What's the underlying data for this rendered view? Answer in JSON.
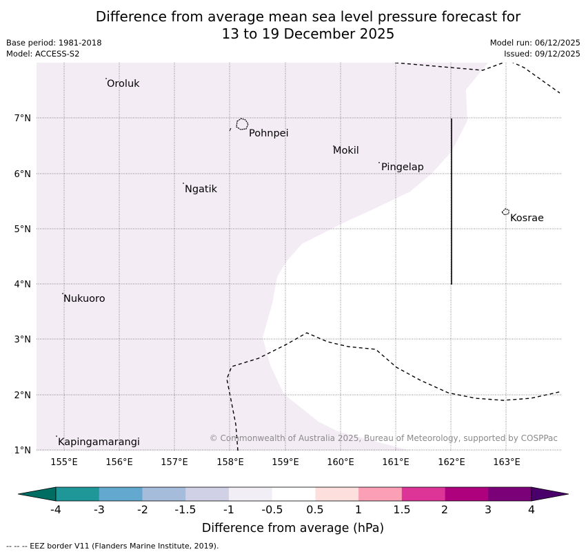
{
  "title": {
    "line1": "Difference from average mean sea level pressure forecast for",
    "line2": "13 to 19 December 2025"
  },
  "meta": {
    "base_period": "Base period: 1981-2018",
    "model": "Model: ACCESS-S2",
    "model_run": "Model run: 06/12/2025",
    "issued": "Issued: 09/12/2025"
  },
  "map": {
    "lon_labels": [
      "155°E",
      "156°E",
      "157°E",
      "158°E",
      "159°E",
      "160°E",
      "161°E",
      "162°E",
      "163°E"
    ],
    "lat_labels": [
      "7°N",
      "6°N",
      "5°N",
      "4°N",
      "3°N",
      "2°N",
      "1°N"
    ],
    "places": [
      "Oroluk",
      "Pohnpei",
      "Mokil",
      "Pingelap",
      "Ngatik",
      "Kosrae",
      "Nukuoro",
      "Kapingamarangi"
    ],
    "copyright": "© Commonwealth of Australia 2025, Bureau of Meteorology, supported by COSPPac",
    "shading_color": "#f4ecf5"
  },
  "colorbar": {
    "label": "Difference from average (hPa)",
    "ticks": [
      "-4",
      "-3",
      "-2",
      "-1.5",
      "-1",
      "-0.5",
      "0.5",
      "1",
      "1.5",
      "2",
      "3",
      "4"
    ],
    "colors": [
      "#006d62",
      "#1f9698",
      "#63a8cf",
      "#a5bcdb",
      "#d0d1e6",
      "#f1eef6",
      "#ffffff",
      "#fde0dd",
      "#fa9fb5",
      "#dd3497",
      "#ae017e",
      "#7a0177",
      "#49006a"
    ]
  },
  "footer": {
    "legend": "--  --  -- EEZ border V11 (Flanders Marine Institute, 2019)."
  }
}
